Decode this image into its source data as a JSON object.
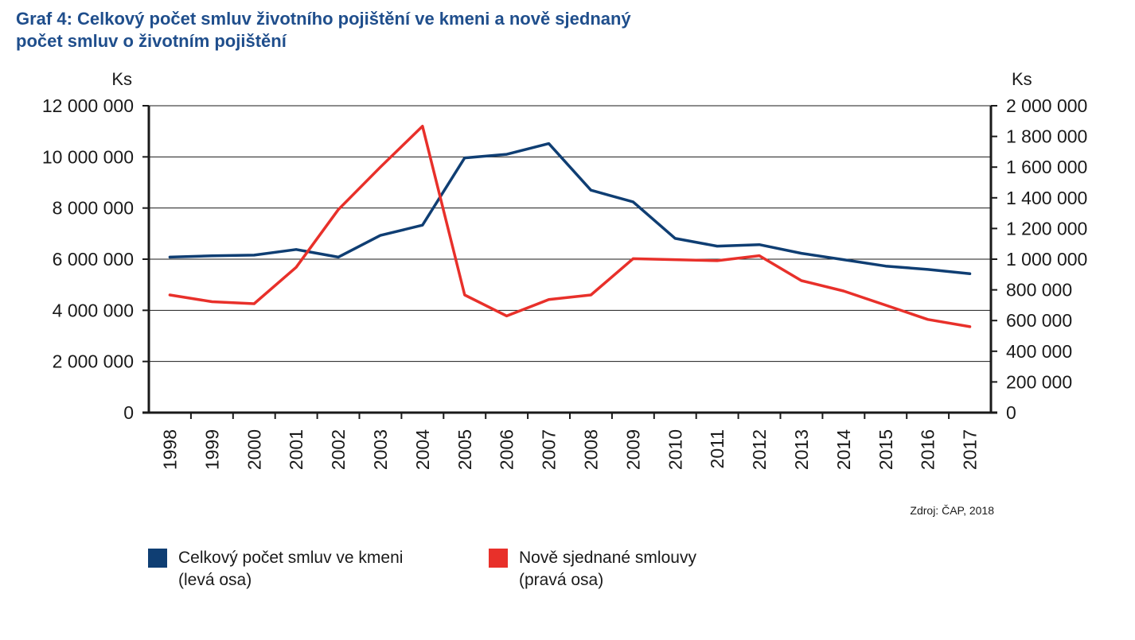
{
  "title_lines": [
    "Graf 4: Celkový počet smluv životního pojištění ve kmeni a nově sjednaný",
    "počet smluv o životním pojištění"
  ],
  "source": "Zdroj: ČAP, 2018",
  "colors": {
    "series_kmen": "#0f3e73",
    "series_nove": "#e8302a",
    "title": "#1f4e8c"
  },
  "legend": [
    {
      "lines": [
        "Celkový počet smluv ve kmeni",
        "(levá osa)"
      ]
    },
    {
      "lines": [
        "Nově sjednané smlouvy",
        "(pravá osa)"
      ]
    }
  ],
  "chart_data": {
    "type": "line",
    "x": [
      "1998",
      "1999",
      "2000",
      "2001",
      "2002",
      "2003",
      "2004",
      "2005",
      "2006",
      "2007",
      "2008",
      "2009",
      "2010",
      "2011",
      "2012",
      "2013",
      "2014",
      "2015",
      "2016",
      "2017"
    ],
    "left_axis": {
      "unit": "Ks",
      "ylim": [
        0,
        12000000
      ],
      "ticks": [
        0,
        2000000,
        4000000,
        6000000,
        8000000,
        10000000,
        12000000
      ],
      "tick_labels": [
        "0",
        "2 000 000",
        "4 000 000",
        "6 000 000",
        "8 000 000",
        "10 000 000",
        "12 000 000"
      ]
    },
    "right_axis": {
      "unit": "Ks",
      "ylim": [
        0,
        2000000
      ],
      "ticks": [
        0,
        200000,
        400000,
        600000,
        800000,
        1000000,
        1200000,
        1400000,
        1600000,
        1800000,
        2000000
      ],
      "tick_labels": [
        "0",
        "200 000",
        "400 000",
        "600 000",
        "800 000",
        "1 000 000",
        "1 200 000",
        "1 400 000",
        "1 600 000",
        "1 800 000",
        "2 000 000"
      ]
    },
    "grid": true,
    "legend_position": "bottom",
    "series": [
      {
        "name": "Celkový počet smluv ve kmeni",
        "axis": "left",
        "color": "#0f3e73",
        "values": [
          6080000,
          6130000,
          6160000,
          6380000,
          6080000,
          6930000,
          7330000,
          9960000,
          10100000,
          10520000,
          8700000,
          8240000,
          6810000,
          6510000,
          6570000,
          6230000,
          5980000,
          5730000,
          5600000,
          5430000
        ]
      },
      {
        "name": "Nově sjednané smlouvy",
        "axis": "right",
        "color": "#e8302a",
        "values": [
          767000,
          723000,
          710000,
          947000,
          1323000,
          1600000,
          1867000,
          767000,
          630000,
          737000,
          767000,
          1003000,
          997000,
          990000,
          1023000,
          860000,
          793000,
          700000,
          607000,
          560000
        ]
      }
    ]
  }
}
